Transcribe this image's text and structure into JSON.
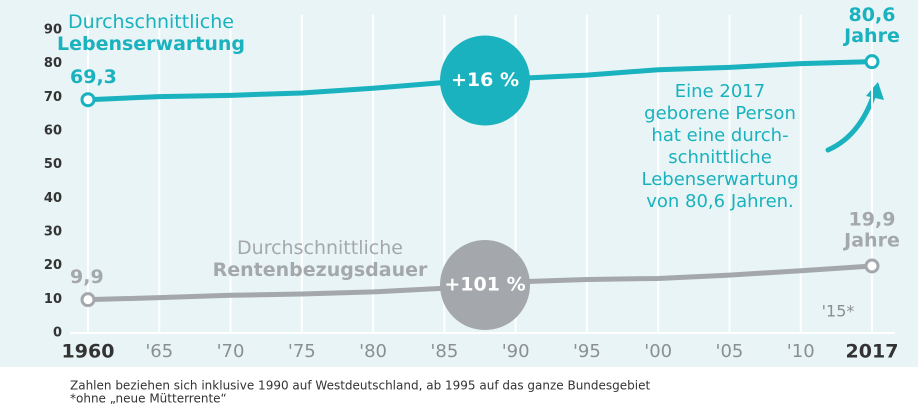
{
  "chart_data": {
    "type": "line",
    "categories": [
      "1960",
      "'65",
      "'70",
      "'75",
      "'80",
      "'85",
      "'90",
      "'95",
      "'00",
      "'05",
      "'10",
      "2017"
    ],
    "series": [
      {
        "name": "Durchschnittliche Lebenserwartung",
        "color": "#19b2be",
        "values": [
          69.3,
          70.2,
          70.6,
          71.3,
          72.7,
          74.4,
          75.6,
          76.6,
          78.2,
          78.9,
          80.0,
          80.6
        ],
        "value_labels": [
          "69,3",
          null,
          null,
          null,
          null,
          null,
          null,
          null,
          null,
          null,
          null,
          "80,6"
        ],
        "change": "+16 %"
      },
      {
        "name": "Durchschnittliche Rentenbezugsdauer",
        "color": "#a4a8ad",
        "values": [
          9.9,
          10.5,
          11.2,
          11.6,
          12.2,
          13.3,
          15.2,
          15.9,
          16.2,
          17.2,
          18.5,
          19.9
        ],
        "value_labels": [
          "9,9",
          null,
          null,
          null,
          null,
          null,
          null,
          null,
          null,
          null,
          null,
          "19,9"
        ],
        "change": "+101 %"
      }
    ],
    "unit": "Jahre",
    "ylim": [
      0,
      90
    ],
    "yticks": [
      0,
      10,
      20,
      30,
      40,
      50,
      60,
      70,
      80,
      90
    ],
    "annotation": [
      "Eine 2017",
      "geborene Person",
      "hat eine durch-",
      "schnittliche",
      "Lebenserwartung",
      "von 80,6 Jahren."
    ],
    "note": "'15*",
    "footnotes": [
      "Zahlen beziehen sich inklusive 1990 auf Westdeutschland, ab 1995 auf das ganze Bundesgebiet",
      "*ohne „neue Mütterrente“"
    ]
  }
}
